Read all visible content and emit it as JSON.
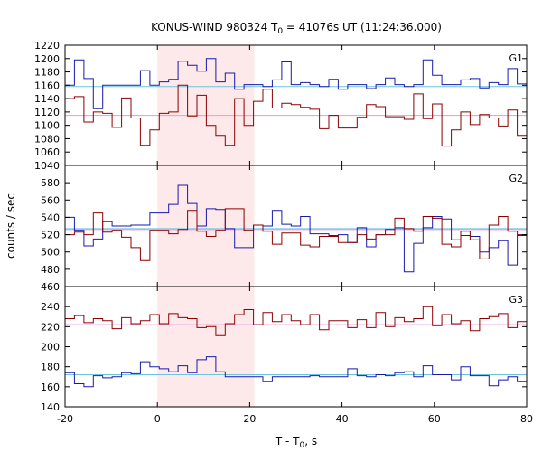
{
  "chart_data": {
    "type": "line",
    "title": "KONUS-WIND 980324 T",
    "title_sub": "0",
    "title_rest": " = 41076s UT (11:24:36.000)",
    "xlabel": "T - T",
    "xlabel_sub": "0",
    "xlabel_rest": ", s",
    "ylabel": "counts / sec",
    "xlim": [
      -20,
      80
    ],
    "x_ticks": [
      -20,
      0,
      20,
      40,
      60,
      80
    ],
    "shaded_interval": [
      0,
      21
    ],
    "shade_color": "#fde8ea",
    "panels": [
      {
        "name": "G1",
        "ylim": [
          1040,
          1220
        ],
        "y_ticks": [
          1040,
          1060,
          1080,
          1100,
          1120,
          1140,
          1160,
          1180,
          1200,
          1220
        ],
        "series": [
          {
            "color": "#1a1aaa",
            "values": [
              1160,
              1198,
              1170,
              1125,
              1160,
              1160,
              1160,
              1160,
              1182,
              1160,
              1165,
              1169,
              1196,
              1190,
              1181,
              1200,
              1165,
              1178,
              1154,
              1161,
              1161,
              1158,
              1168,
              1195,
              1161,
              1164,
              1161,
              1158,
              1169,
              1154,
              1161,
              1161,
              1155,
              1161,
              1171,
              1161,
              1158,
              1161,
              1198,
              1175,
              1161,
              1161,
              1168,
              1170,
              1156,
              1164,
              1161,
              1185,
              1162
            ]
          },
          {
            "name": "",
            "color": "#8b0000",
            "values": [
              1140,
              1143,
              1105,
              1120,
              1118,
              1097,
              1141,
              1111,
              1070,
              1093,
              1118,
              1120,
              1160,
              1114,
              1145,
              1100,
              1085,
              1070,
              1140,
              1100,
              1136,
              1154,
              1126,
              1133,
              1131,
              1127,
              1124,
              1095,
              1115,
              1096,
              1096,
              1112,
              1131,
              1128,
              1113,
              1113,
              1109,
              1147,
              1110,
              1132,
              1069,
              1093,
              1120,
              1101,
              1116,
              1111,
              1099,
              1123,
              1085
            ]
          }
        ],
        "bg_lines": [
          {
            "value": 1158,
            "color": "#6cc4e0"
          },
          {
            "value": 1115,
            "color": "#e898d8"
          }
        ]
      },
      {
        "name": "G2",
        "ylim": [
          460,
          600
        ],
        "y_ticks": [
          460,
          480,
          500,
          520,
          540,
          560,
          580
        ],
        "series": [
          {
            "color": "#1a1aaa",
            "values": [
              540,
              525,
              507,
              515,
              535,
              530,
              530,
              531,
              531,
              545,
              545,
              555,
              577,
              556,
              530,
              550,
              549,
              527,
              505,
              505,
              531,
              530,
              548,
              532,
              530,
              541,
              521,
              521,
              519,
              520,
              511,
              528,
              506,
              520,
              526,
              528,
              477,
              510,
              528,
              541,
              538,
              514,
              519,
              518,
              500,
              505,
              513,
              485,
              519
            ]
          },
          {
            "color": "#8b0000",
            "values": [
              520,
              523,
              520,
              545,
              523,
              525,
              517,
              505,
              490,
              525,
              525,
              521,
              526,
              548,
              524,
              518,
              525,
              550,
              550,
              525,
              531,
              524,
              509,
              522,
              522,
              508,
              506,
              518,
              518,
              511,
              511,
              520,
              515,
              520,
              520,
              539,
              527,
              524,
              541,
              539,
              509,
              506,
              524,
              514,
              492,
              531,
              541,
              524,
              520
            ]
          }
        ],
        "bg_lines": [
          {
            "value": 527,
            "color": "#6cc4e0"
          },
          {
            "value": 526,
            "color": "#e898d8"
          }
        ]
      },
      {
        "name": "G3",
        "ylim": [
          140,
          260
        ],
        "y_ticks": [
          140,
          160,
          180,
          200,
          220,
          240
        ],
        "series": [
          {
            "color": "#8b0000",
            "values": [
              228,
              231,
              224,
              228,
              226,
              218,
              229,
              223,
              226,
              232,
              223,
              233,
              229,
              228,
              219,
              220,
              211,
              223,
              232,
              237,
              222,
              234,
              225,
              232,
              226,
              222,
              232,
              217,
              226,
              226,
              219,
              227,
              219,
              234,
              220,
              229,
              225,
              228,
              240,
              221,
              232,
              223,
              226,
              216,
              228,
              230,
              233,
              219,
              225
            ]
          },
          {
            "color": "#1a1aaa",
            "values": [
              174,
              163,
              160,
              171,
              169,
              170,
              174,
              173,
              185,
              180,
              178,
              175,
              181,
              174,
              187,
              190,
              175,
              170,
              170,
              170,
              170,
              165,
              170,
              170,
              170,
              170,
              171,
              170,
              170,
              170,
              178,
              171,
              170,
              172,
              171,
              174,
              175,
              170,
              181,
              172,
              172,
              167,
              180,
              171,
              171,
              161,
              167,
              170,
              165
            ]
          }
        ],
        "bg_lines": [
          {
            "value": 172,
            "color": "#6cc4e0"
          },
          {
            "value": 222,
            "color": "#e898d8"
          }
        ]
      }
    ]
  }
}
